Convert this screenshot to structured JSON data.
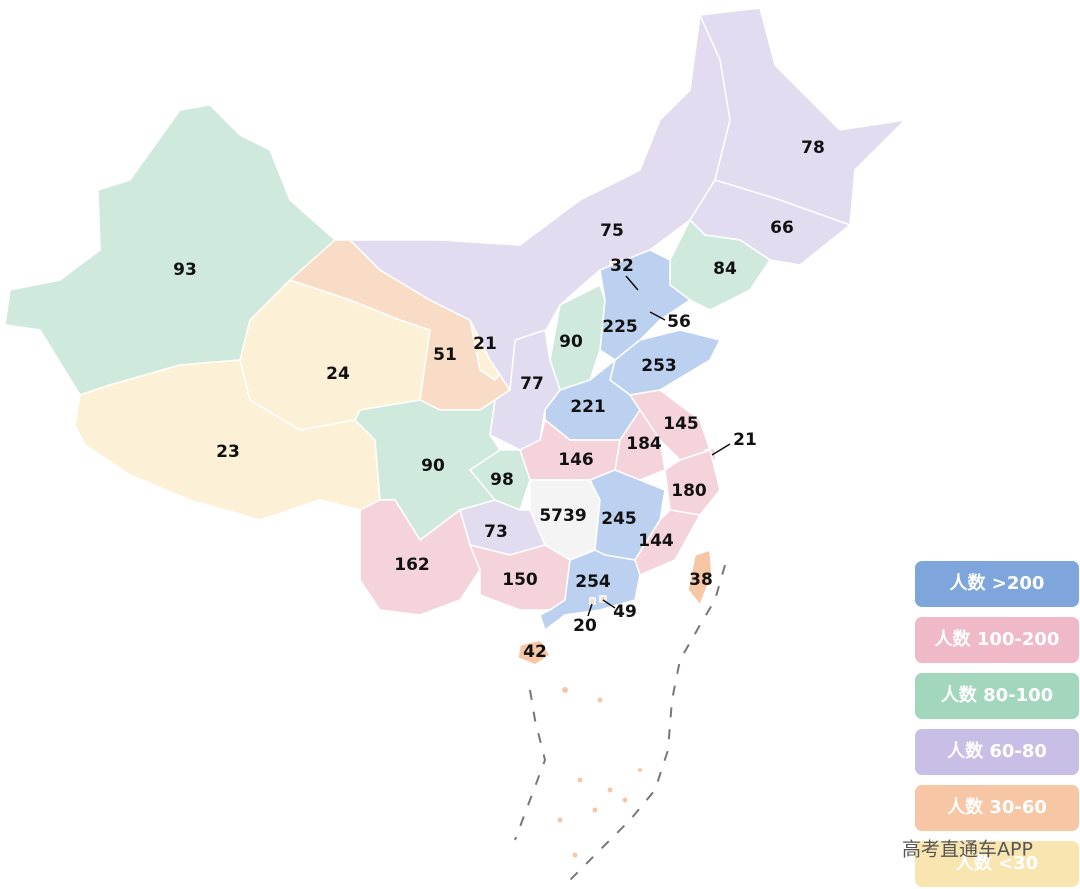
{
  "regions": [
    {
      "value": 93,
      "color": "#cfe9dd"
    },
    {
      "value": 23,
      "color": "#fcf1d6"
    },
    {
      "value": 24,
      "color": "#fcf1d6"
    },
    {
      "value": 51,
      "color": "#f9dcc5"
    },
    {
      "value": 21,
      "color": "#fcf1d6"
    },
    {
      "value": 75,
      "color": "#e2dcf0"
    },
    {
      "value": 78,
      "color": "#e2dcf0"
    },
    {
      "value": 66,
      "color": "#e2dcf0"
    },
    {
      "value": 84,
      "color": "#cfe9dd"
    },
    {
      "value": 32,
      "color": "#f9dcc5"
    },
    {
      "value": 56,
      "color": "#f9dcc5"
    },
    {
      "value": 225,
      "color": "#bcd0ef"
    },
    {
      "value": 90,
      "color": "#cfe9dd"
    },
    {
      "value": 77,
      "color": "#e2dcf0"
    },
    {
      "value": 253,
      "color": "#bcd0ef"
    },
    {
      "value": 221,
      "color": "#bcd0ef"
    },
    {
      "value": 145,
      "color": "#f5d3db"
    },
    {
      "value": 21,
      "color": "#f5d3db"
    },
    {
      "value": 184,
      "color": "#f5d3db"
    },
    {
      "value": 180,
      "color": "#f5d3db"
    },
    {
      "value": 146,
      "color": "#f5d3db"
    },
    {
      "value": 98,
      "color": "#cfe9dd"
    },
    {
      "value": 90,
      "color": "#cfe9dd"
    },
    {
      "value": 5739,
      "color": "#f4f4f4"
    },
    {
      "value": 245,
      "color": "#bcd0ef"
    },
    {
      "value": 144,
      "color": "#f5d3db"
    },
    {
      "value": 73,
      "color": "#e2dcf0"
    },
    {
      "value": 162,
      "color": "#f5d3db"
    },
    {
      "value": 150,
      "color": "#f5d3db"
    },
    {
      "value": 254,
      "color": "#bcd0ef"
    },
    {
      "value": 49,
      "color": "#f9dcc5"
    },
    {
      "value": 20,
      "color": "#f9dcc5"
    },
    {
      "value": 42,
      "color": "#f7c7a5"
    },
    {
      "value": 38,
      "color": "#f7c7a5"
    }
  ],
  "legend": [
    {
      "label": "人数 >200",
      "color": "#7fa6dc"
    },
    {
      "label": "人数 100-200",
      "color": "#efb9c7"
    },
    {
      "label": "人数 80-100",
      "color": "#a2d7bd"
    },
    {
      "label": "人数 60-80",
      "color": "#c9bee6"
    },
    {
      "label": "人数 30-60",
      "color": "#f7c6a4"
    },
    {
      "label": "人数 <30",
      "color": "#f9e5b0"
    }
  ],
  "watermark": "高考直通车APP"
}
